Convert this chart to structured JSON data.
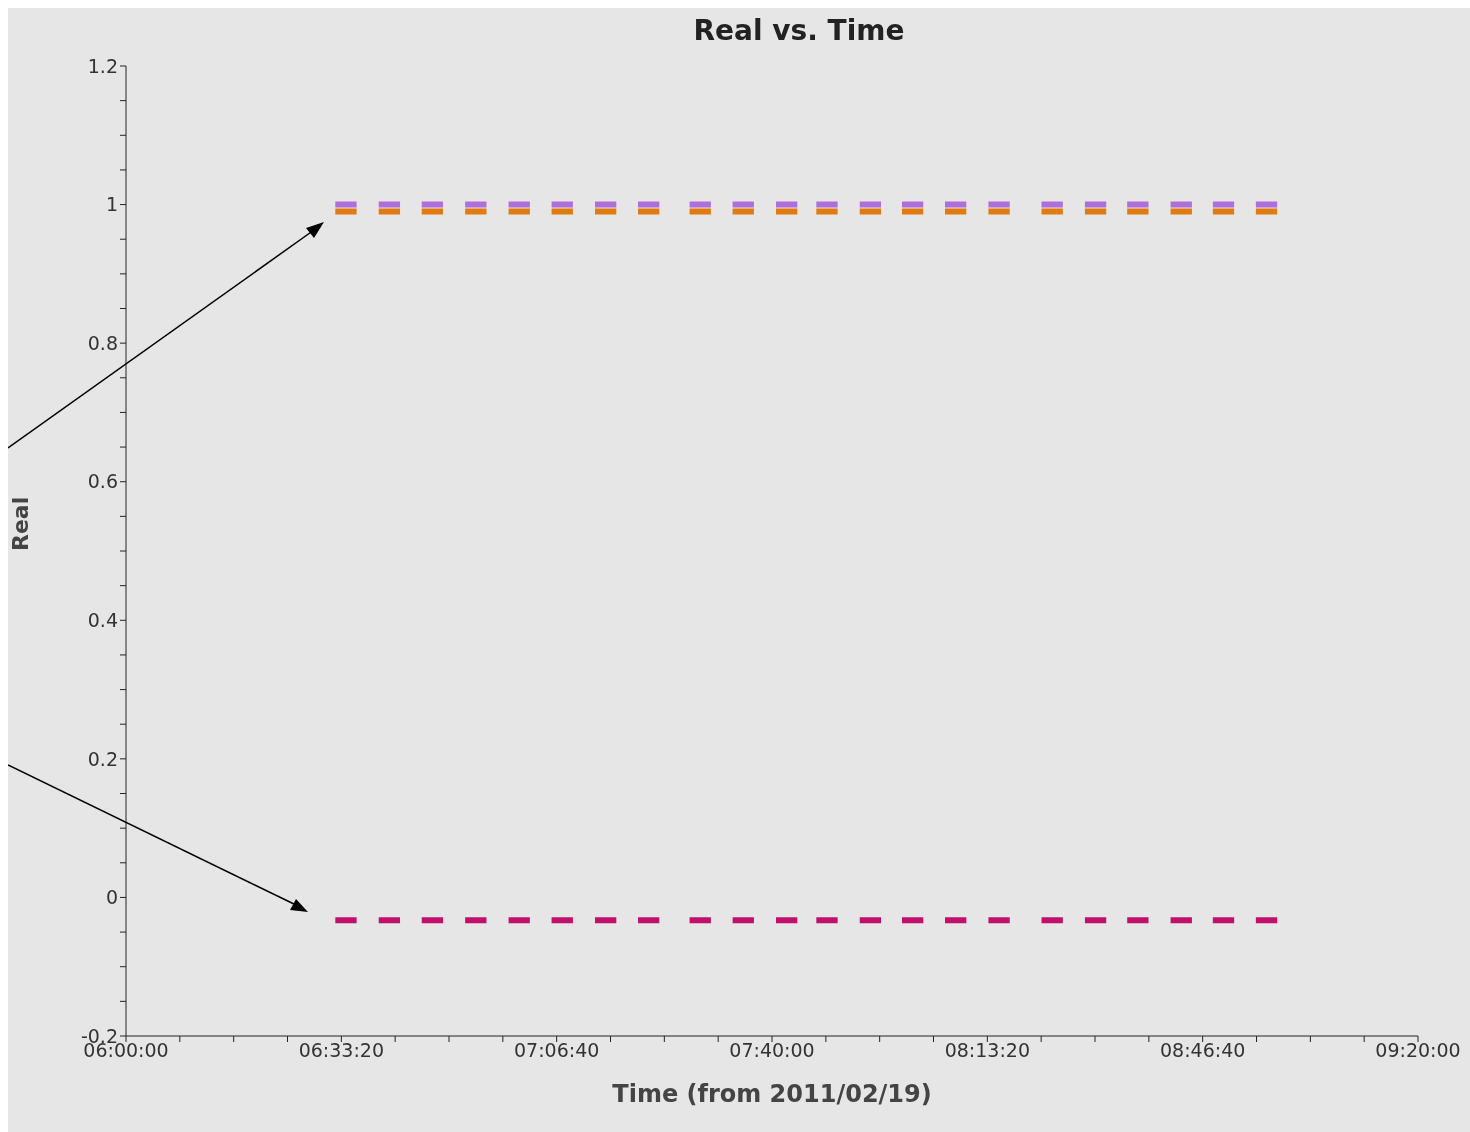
{
  "chart_data": {
    "type": "line",
    "title": "Real vs. Time",
    "xlabel": "Time (from 2011/02/19)",
    "ylabel": "Real",
    "x": [
      6.54,
      6.595,
      null,
      6.652,
      6.707,
      null,
      6.763,
      6.818,
      null,
      6.875,
      6.93,
      null,
      6.987,
      7.042,
      null,
      7.098,
      7.153,
      null,
      7.21,
      7.265,
      null,
      7.321,
      7.376,
      null,
      7.454,
      7.509,
      null,
      7.565,
      7.62,
      null,
      7.677,
      7.732,
      null,
      7.781,
      7.836,
      null,
      7.893,
      7.948,
      null,
      8.002,
      8.057,
      null,
      8.113,
      8.168,
      null,
      8.225,
      8.28,
      null,
      8.362,
      8.417,
      null,
      8.474,
      8.529,
      null,
      8.583,
      8.638,
      null,
      8.695,
      8.75,
      null,
      8.804,
      8.859,
      null,
      8.915,
      8.97,
      null
    ],
    "series": [
      {
        "color": "#b06fd8",
        "values": [
          1.0,
          1.0,
          null,
          1.0,
          1.0,
          null,
          1.0,
          1.0,
          null,
          1.0,
          1.0,
          null,
          1.0,
          1.0,
          null,
          1.0,
          1.0,
          null,
          1.0,
          1.0,
          null,
          1.0,
          1.0,
          null,
          1.0,
          1.0,
          null,
          1.0,
          1.0,
          null,
          1.0,
          1.0,
          null,
          1.0,
          1.0,
          null,
          1.0,
          1.0,
          null,
          1.0,
          1.0,
          null,
          1.0,
          1.0,
          null,
          1.0,
          1.0,
          null,
          1.0,
          1.0,
          null,
          1.0,
          1.0,
          null,
          1.0,
          1.0,
          null,
          1.0,
          1.0,
          null,
          1.0,
          1.0,
          null,
          1.0,
          1.0,
          null
        ]
      },
      {
        "color": "#e07b10",
        "values": [
          0.99,
          0.99,
          null,
          0.99,
          0.99,
          null,
          0.99,
          0.99,
          null,
          0.99,
          0.99,
          null,
          0.99,
          0.99,
          null,
          0.99,
          0.99,
          null,
          0.99,
          0.99,
          null,
          0.99,
          0.99,
          null,
          0.99,
          0.99,
          null,
          0.99,
          0.99,
          null,
          0.99,
          0.99,
          null,
          0.99,
          0.99,
          null,
          0.99,
          0.99,
          null,
          0.99,
          0.99,
          null,
          0.99,
          0.99,
          null,
          0.99,
          0.99,
          null,
          0.99,
          0.99,
          null,
          0.99,
          0.99,
          null,
          0.99,
          0.99,
          null,
          0.99,
          0.99,
          null,
          0.99,
          0.99,
          null,
          0.99,
          0.99,
          null
        ]
      },
      {
        "color": "#c0106a",
        "values": [
          -0.033,
          -0.033,
          null,
          -0.033,
          -0.033,
          null,
          -0.033,
          -0.033,
          null,
          -0.033,
          -0.033,
          null,
          -0.033,
          -0.033,
          null,
          -0.033,
          -0.033,
          null,
          -0.033,
          -0.033,
          null,
          -0.033,
          -0.033,
          null,
          -0.033,
          -0.033,
          null,
          -0.033,
          -0.033,
          null,
          -0.033,
          -0.033,
          null,
          -0.033,
          -0.033,
          null,
          -0.033,
          -0.033,
          null,
          -0.033,
          -0.033,
          null,
          -0.033,
          -0.033,
          null,
          -0.033,
          -0.033,
          null,
          -0.033,
          -0.033,
          null,
          -0.033,
          -0.033,
          null,
          -0.033,
          -0.033,
          null,
          -0.033,
          -0.033,
          null,
          -0.033,
          -0.033,
          null,
          -0.033,
          -0.033,
          null
        ]
      }
    ],
    "xlim": [
      6,
      9.3333
    ],
    "xticks": [
      {
        "value": 6,
        "label": "06:00:00"
      },
      {
        "value": 6.1389,
        "label": null
      },
      {
        "value": 6.2778,
        "label": null
      },
      {
        "value": 6.4167,
        "label": null
      },
      {
        "value": 6.5556,
        "label": "06:33:20"
      },
      {
        "value": 6.6944,
        "label": null
      },
      {
        "value": 6.8333,
        "label": null
      },
      {
        "value": 6.9722,
        "label": null
      },
      {
        "value": 7.1111,
        "label": "07:06:40"
      },
      {
        "value": 7.25,
        "label": null
      },
      {
        "value": 7.3889,
        "label": null
      },
      {
        "value": 7.5278,
        "label": null
      },
      {
        "value": 7.6667,
        "label": "07:40:00"
      },
      {
        "value": 7.8056,
        "label": null
      },
      {
        "value": 7.9444,
        "label": null
      },
      {
        "value": 8.0833,
        "label": null
      },
      {
        "value": 8.2222,
        "label": "08:13:20"
      },
      {
        "value": 8.3611,
        "label": null
      },
      {
        "value": 8.5,
        "label": null
      },
      {
        "value": 8.6389,
        "label": null
      },
      {
        "value": 8.7778,
        "label": "08:46:40"
      },
      {
        "value": 8.9167,
        "label": null
      },
      {
        "value": 9.0556,
        "label": null
      },
      {
        "value": 9.1944,
        "label": null
      },
      {
        "value": 9.3333,
        "label": "09:20:00"
      }
    ],
    "ylim": [
      -0.2,
      1.2
    ],
    "yticks": [
      -0.2,
      {
        "value": -0.15,
        "label": null
      },
      {
        "value": -0.1,
        "label": null
      },
      {
        "value": -0.05,
        "label": null
      },
      0,
      {
        "value": 0.05,
        "label": null
      },
      {
        "value": 0.1,
        "label": null
      },
      {
        "value": 0.15,
        "label": null
      },
      0.2,
      {
        "value": 0.25,
        "label": null
      },
      {
        "value": 0.3,
        "label": null
      },
      {
        "value": 0.35,
        "label": null
      },
      0.4,
      {
        "value": 0.45,
        "label": null
      },
      {
        "value": 0.5,
        "label": null
      },
      {
        "value": 0.55,
        "label": null
      },
      0.6,
      {
        "value": 0.65,
        "label": null
      },
      {
        "value": 0.7,
        "label": null
      },
      {
        "value": 0.75,
        "label": null
      },
      0.8,
      {
        "value": 0.85,
        "label": null
      },
      {
        "value": 0.9,
        "label": null
      },
      {
        "value": 0.95,
        "label": null
      },
      1,
      {
        "value": 1.05,
        "label": null
      },
      {
        "value": 1.1,
        "label": null
      },
      {
        "value": 1.15,
        "label": null
      },
      1.2
    ],
    "grid": false,
    "legend": false,
    "marker": "none",
    "line_style": "solid"
  }
}
